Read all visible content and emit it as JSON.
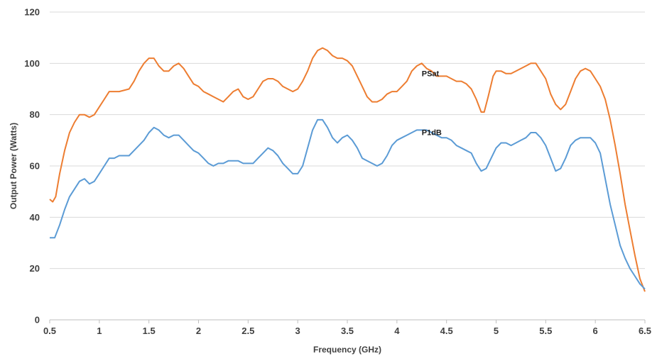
{
  "chart_data": {
    "type": "line",
    "title": "",
    "xlabel": "Frequency (GHz)",
    "ylabel": "Output Power (Watts)",
    "xlim": [
      0.5,
      6.5
    ],
    "ylim": [
      0,
      120
    ],
    "x_ticks": [
      0.5,
      1,
      1.5,
      2,
      2.5,
      3,
      3.5,
      4,
      4.5,
      5,
      5.5,
      6,
      6.5
    ],
    "x_tick_labels": [
      "0.5",
      "1",
      "1.5",
      "2",
      "2.5",
      "3",
      "3.5",
      "4",
      "4.5",
      "5",
      "5.5",
      "6",
      "6.5"
    ],
    "y_ticks": [
      0,
      20,
      40,
      60,
      80,
      100,
      120
    ],
    "y_tick_labels": [
      "0",
      "20",
      "40",
      "60",
      "80",
      "100",
      "120"
    ],
    "grid": true,
    "legend": "none",
    "series": [
      {
        "name": "PSat",
        "color": "#ed7d31",
        "label_at": [
          4.25,
          95
        ],
        "points": [
          [
            0.5,
            47
          ],
          [
            0.53,
            46
          ],
          [
            0.56,
            48
          ],
          [
            0.6,
            57
          ],
          [
            0.65,
            66
          ],
          [
            0.7,
            73
          ],
          [
            0.75,
            77
          ],
          [
            0.8,
            80
          ],
          [
            0.85,
            80
          ],
          [
            0.9,
            79
          ],
          [
            0.95,
            80
          ],
          [
            1.0,
            83
          ],
          [
            1.05,
            86
          ],
          [
            1.1,
            89
          ],
          [
            1.2,
            89
          ],
          [
            1.3,
            90
          ],
          [
            1.35,
            93
          ],
          [
            1.4,
            97
          ],
          [
            1.45,
            100
          ],
          [
            1.5,
            102
          ],
          [
            1.55,
            102
          ],
          [
            1.6,
            99
          ],
          [
            1.65,
            97
          ],
          [
            1.7,
            97
          ],
          [
            1.75,
            99
          ],
          [
            1.8,
            100
          ],
          [
            1.85,
            98
          ],
          [
            1.9,
            95
          ],
          [
            1.95,
            92
          ],
          [
            2.0,
            91
          ],
          [
            2.05,
            89
          ],
          [
            2.1,
            88
          ],
          [
            2.15,
            87
          ],
          [
            2.2,
            86
          ],
          [
            2.25,
            85
          ],
          [
            2.3,
            87
          ],
          [
            2.35,
            89
          ],
          [
            2.4,
            90
          ],
          [
            2.45,
            87
          ],
          [
            2.5,
            86
          ],
          [
            2.55,
            87
          ],
          [
            2.6,
            90
          ],
          [
            2.65,
            93
          ],
          [
            2.7,
            94
          ],
          [
            2.75,
            94
          ],
          [
            2.8,
            93
          ],
          [
            2.85,
            91
          ],
          [
            2.9,
            90
          ],
          [
            2.95,
            89
          ],
          [
            3.0,
            90
          ],
          [
            3.05,
            93
          ],
          [
            3.1,
            97
          ],
          [
            3.15,
            102
          ],
          [
            3.2,
            105
          ],
          [
            3.25,
            106
          ],
          [
            3.3,
            105
          ],
          [
            3.35,
            103
          ],
          [
            3.4,
            102
          ],
          [
            3.45,
            102
          ],
          [
            3.5,
            101
          ],
          [
            3.55,
            99
          ],
          [
            3.6,
            95
          ],
          [
            3.65,
            91
          ],
          [
            3.7,
            87
          ],
          [
            3.75,
            85
          ],
          [
            3.8,
            85
          ],
          [
            3.85,
            86
          ],
          [
            3.9,
            88
          ],
          [
            3.95,
            89
          ],
          [
            4.0,
            89
          ],
          [
            4.05,
            91
          ],
          [
            4.1,
            93
          ],
          [
            4.15,
            97
          ],
          [
            4.2,
            99
          ],
          [
            4.25,
            100
          ],
          [
            4.3,
            98
          ],
          [
            4.35,
            97
          ],
          [
            4.4,
            95
          ],
          [
            4.45,
            95
          ],
          [
            4.5,
            95
          ],
          [
            4.55,
            94
          ],
          [
            4.6,
            93
          ],
          [
            4.65,
            93
          ],
          [
            4.7,
            92
          ],
          [
            4.75,
            90
          ],
          [
            4.8,
            86
          ],
          [
            4.85,
            81
          ],
          [
            4.88,
            81
          ],
          [
            4.92,
            87
          ],
          [
            4.97,
            95
          ],
          [
            5.0,
            97
          ],
          [
            5.05,
            97
          ],
          [
            5.1,
            96
          ],
          [
            5.15,
            96
          ],
          [
            5.2,
            97
          ],
          [
            5.25,
            98
          ],
          [
            5.3,
            99
          ],
          [
            5.35,
            100
          ],
          [
            5.4,
            100
          ],
          [
            5.45,
            97
          ],
          [
            5.5,
            94
          ],
          [
            5.55,
            88
          ],
          [
            5.6,
            84
          ],
          [
            5.65,
            82
          ],
          [
            5.7,
            84
          ],
          [
            5.75,
            89
          ],
          [
            5.8,
            94
          ],
          [
            5.85,
            97
          ],
          [
            5.9,
            98
          ],
          [
            5.95,
            97
          ],
          [
            6.0,
            94
          ],
          [
            6.05,
            91
          ],
          [
            6.1,
            86
          ],
          [
            6.15,
            78
          ],
          [
            6.2,
            68
          ],
          [
            6.25,
            57
          ],
          [
            6.3,
            45
          ],
          [
            6.35,
            35
          ],
          [
            6.4,
            25
          ],
          [
            6.45,
            16
          ],
          [
            6.5,
            11
          ]
        ]
      },
      {
        "name": "P1dB",
        "color": "#5b9bd5",
        "label_at": [
          4.25,
          72
        ],
        "points": [
          [
            0.5,
            32
          ],
          [
            0.55,
            32
          ],
          [
            0.6,
            37
          ],
          [
            0.65,
            43
          ],
          [
            0.7,
            48
          ],
          [
            0.75,
            51
          ],
          [
            0.8,
            54
          ],
          [
            0.85,
            55
          ],
          [
            0.9,
            53
          ],
          [
            0.95,
            54
          ],
          [
            1.0,
            57
          ],
          [
            1.05,
            60
          ],
          [
            1.1,
            63
          ],
          [
            1.15,
            63
          ],
          [
            1.2,
            64
          ],
          [
            1.3,
            64
          ],
          [
            1.35,
            66
          ],
          [
            1.4,
            68
          ],
          [
            1.45,
            70
          ],
          [
            1.5,
            73
          ],
          [
            1.55,
            75
          ],
          [
            1.6,
            74
          ],
          [
            1.65,
            72
          ],
          [
            1.7,
            71
          ],
          [
            1.75,
            72
          ],
          [
            1.8,
            72
          ],
          [
            1.85,
            70
          ],
          [
            1.9,
            68
          ],
          [
            1.95,
            66
          ],
          [
            2.0,
            65
          ],
          [
            2.05,
            63
          ],
          [
            2.1,
            61
          ],
          [
            2.15,
            60
          ],
          [
            2.2,
            61
          ],
          [
            2.25,
            61
          ],
          [
            2.3,
            62
          ],
          [
            2.35,
            62
          ],
          [
            2.4,
            62
          ],
          [
            2.45,
            61
          ],
          [
            2.5,
            61
          ],
          [
            2.55,
            61
          ],
          [
            2.6,
            63
          ],
          [
            2.65,
            65
          ],
          [
            2.7,
            67
          ],
          [
            2.75,
            66
          ],
          [
            2.8,
            64
          ],
          [
            2.85,
            61
          ],
          [
            2.9,
            59
          ],
          [
            2.95,
            57
          ],
          [
            3.0,
            57
          ],
          [
            3.05,
            60
          ],
          [
            3.1,
            67
          ],
          [
            3.15,
            74
          ],
          [
            3.2,
            78
          ],
          [
            3.25,
            78
          ],
          [
            3.3,
            75
          ],
          [
            3.35,
            71
          ],
          [
            3.4,
            69
          ],
          [
            3.45,
            71
          ],
          [
            3.5,
            72
          ],
          [
            3.55,
            70
          ],
          [
            3.6,
            67
          ],
          [
            3.65,
            63
          ],
          [
            3.7,
            62
          ],
          [
            3.75,
            61
          ],
          [
            3.8,
            60
          ],
          [
            3.85,
            61
          ],
          [
            3.9,
            64
          ],
          [
            3.95,
            68
          ],
          [
            4.0,
            70
          ],
          [
            4.05,
            71
          ],
          [
            4.1,
            72
          ],
          [
            4.15,
            73
          ],
          [
            4.2,
            74
          ],
          [
            4.25,
            74
          ],
          [
            4.3,
            74
          ],
          [
            4.35,
            73
          ],
          [
            4.4,
            72
          ],
          [
            4.45,
            71
          ],
          [
            4.5,
            71
          ],
          [
            4.55,
            70
          ],
          [
            4.6,
            68
          ],
          [
            4.65,
            67
          ],
          [
            4.7,
            66
          ],
          [
            4.75,
            65
          ],
          [
            4.8,
            61
          ],
          [
            4.85,
            58
          ],
          [
            4.9,
            59
          ],
          [
            4.95,
            63
          ],
          [
            5.0,
            67
          ],
          [
            5.05,
            69
          ],
          [
            5.1,
            69
          ],
          [
            5.15,
            68
          ],
          [
            5.2,
            69
          ],
          [
            5.25,
            70
          ],
          [
            5.3,
            71
          ],
          [
            5.35,
            73
          ],
          [
            5.4,
            73
          ],
          [
            5.45,
            71
          ],
          [
            5.5,
            68
          ],
          [
            5.55,
            63
          ],
          [
            5.6,
            58
          ],
          [
            5.65,
            59
          ],
          [
            5.7,
            63
          ],
          [
            5.75,
            68
          ],
          [
            5.8,
            70
          ],
          [
            5.85,
            71
          ],
          [
            5.9,
            71
          ],
          [
            5.95,
            71
          ],
          [
            6.0,
            69
          ],
          [
            6.05,
            65
          ],
          [
            6.1,
            55
          ],
          [
            6.15,
            45
          ],
          [
            6.2,
            37
          ],
          [
            6.25,
            29
          ],
          [
            6.3,
            24
          ],
          [
            6.35,
            20
          ],
          [
            6.4,
            17
          ],
          [
            6.45,
            14
          ],
          [
            6.5,
            12
          ]
        ]
      }
    ]
  }
}
